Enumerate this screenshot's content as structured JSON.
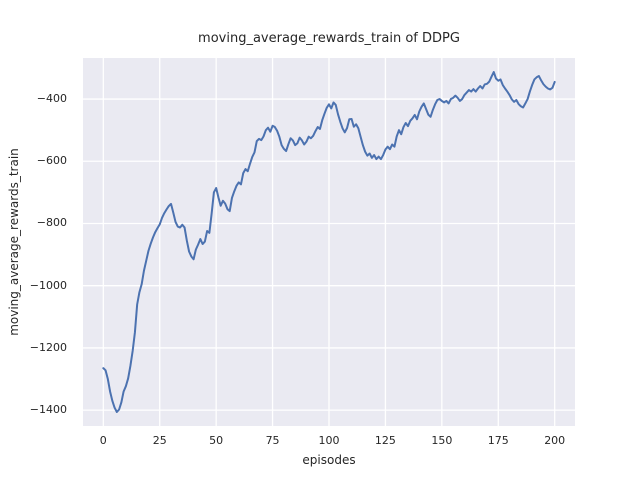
{
  "figure": {
    "background": "#ffffff",
    "plot_background": "#eaeaf2",
    "grid_color": "#ffffff",
    "text_color": "#262626",
    "accent_line_color": "#4c72b0"
  },
  "chart_data": {
    "type": "line",
    "title": "moving_average_rewards_train of DDPG",
    "xlabel": "episodes",
    "ylabel": "moving_average_rewards_train",
    "x_ticks": [
      0,
      25,
      50,
      75,
      100,
      125,
      150,
      175,
      200
    ],
    "x_tick_labels": [
      "0",
      "25",
      "50",
      "75",
      "100",
      "125",
      "150",
      "175",
      "200"
    ],
    "y_ticks": [
      -400,
      -600,
      -800,
      -1000,
      -1200,
      -1400
    ],
    "y_tick_labels": [
      "−400",
      "−600",
      "−800",
      "−1000",
      "−1200",
      "−1400"
    ],
    "xlim": [
      -9,
      209
    ],
    "ylim": [
      -1451,
      -268
    ],
    "grid": true,
    "legend": false,
    "line_color": "#4c72b0",
    "line_width": 2,
    "series": [
      {
        "name": "moving_average_rewards_train",
        "x": [
          0,
          1,
          2,
          3,
          4,
          5,
          6,
          7,
          8,
          9,
          10,
          11,
          12,
          13,
          14,
          15,
          16,
          17,
          18,
          19,
          20,
          21,
          22,
          23,
          24,
          25,
          26,
          27,
          28,
          29,
          30,
          31,
          32,
          33,
          34,
          35,
          36,
          37,
          38,
          39,
          40,
          41,
          42,
          43,
          44,
          45,
          46,
          47,
          48,
          49,
          50,
          51,
          52,
          53,
          54,
          55,
          56,
          57,
          58,
          59,
          60,
          61,
          62,
          63,
          64,
          65,
          66,
          67,
          68,
          69,
          70,
          71,
          72,
          73,
          74,
          75,
          76,
          77,
          78,
          79,
          80,
          81,
          82,
          83,
          84,
          85,
          86,
          87,
          88,
          89,
          90,
          91,
          92,
          93,
          94,
          95,
          96,
          97,
          98,
          99,
          100,
          101,
          102,
          103,
          104,
          105,
          106,
          107,
          108,
          109,
          110,
          111,
          112,
          113,
          114,
          115,
          116,
          117,
          118,
          119,
          120,
          121,
          122,
          123,
          124,
          125,
          126,
          127,
          128,
          129,
          130,
          131,
          132,
          133,
          134,
          135,
          136,
          137,
          138,
          139,
          140,
          141,
          142,
          143,
          144,
          145,
          146,
          147,
          148,
          149,
          150,
          151,
          152,
          153,
          154,
          155,
          156,
          157,
          158,
          159,
          160,
          161,
          162,
          163,
          164,
          165,
          166,
          167,
          168,
          169,
          170,
          171,
          172,
          173,
          174,
          175,
          176,
          177,
          178,
          179,
          180,
          181,
          182,
          183,
          184,
          185,
          186,
          187,
          188,
          189,
          190,
          191,
          192,
          193,
          194,
          195,
          196,
          197,
          198,
          199,
          200
        ],
        "y": [
          -1265,
          -1272,
          -1300,
          -1340,
          -1370,
          -1392,
          -1406,
          -1398,
          -1375,
          -1340,
          -1323,
          -1298,
          -1258,
          -1210,
          -1150,
          -1060,
          -1021,
          -995,
          -952,
          -920,
          -888,
          -865,
          -845,
          -828,
          -815,
          -803,
          -782,
          -767,
          -755,
          -744,
          -737,
          -765,
          -795,
          -810,
          -813,
          -804,
          -813,
          -855,
          -890,
          -906,
          -915,
          -884,
          -868,
          -850,
          -866,
          -858,
          -824,
          -830,
          -768,
          -700,
          -686,
          -716,
          -743,
          -727,
          -736,
          -754,
          -760,
          -718,
          -697,
          -679,
          -668,
          -674,
          -638,
          -625,
          -632,
          -608,
          -586,
          -571,
          -535,
          -528,
          -532,
          -520,
          -500,
          -492,
          -505,
          -486,
          -490,
          -502,
          -521,
          -548,
          -560,
          -567,
          -545,
          -526,
          -533,
          -548,
          -542,
          -524,
          -533,
          -546,
          -537,
          -521,
          -526,
          -518,
          -503,
          -490,
          -496,
          -468,
          -447,
          -428,
          -417,
          -430,
          -411,
          -419,
          -449,
          -473,
          -494,
          -507,
          -493,
          -465,
          -464,
          -489,
          -481,
          -494,
          -521,
          -548,
          -569,
          -582,
          -575,
          -589,
          -580,
          -593,
          -585,
          -593,
          -580,
          -562,
          -553,
          -561,
          -546,
          -553,
          -520,
          -500,
          -513,
          -490,
          -477,
          -487,
          -470,
          -462,
          -451,
          -465,
          -440,
          -425,
          -414,
          -432,
          -450,
          -457,
          -435,
          -417,
          -403,
          -400,
          -406,
          -411,
          -406,
          -414,
          -400,
          -396,
          -389,
          -396,
          -406,
          -400,
          -387,
          -379,
          -371,
          -376,
          -368,
          -376,
          -366,
          -358,
          -366,
          -353,
          -351,
          -344,
          -328,
          -313,
          -334,
          -341,
          -337,
          -355,
          -366,
          -376,
          -387,
          -401,
          -409,
          -403,
          -416,
          -423,
          -427,
          -414,
          -400,
          -376,
          -355,
          -337,
          -330,
          -326,
          -340,
          -352,
          -360,
          -366,
          -369,
          -364,
          -345
        ]
      }
    ]
  }
}
